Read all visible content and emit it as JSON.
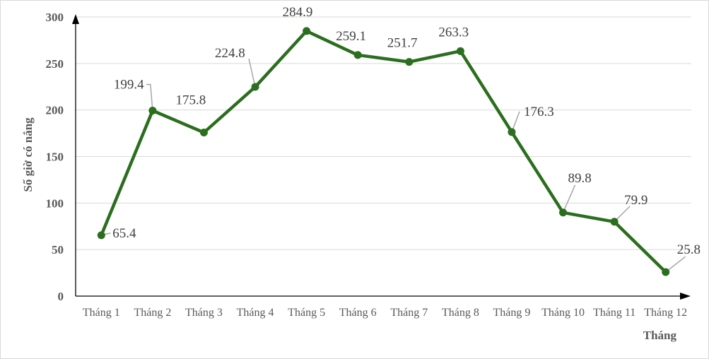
{
  "chart_data": {
    "type": "line",
    "categories": [
      "Tháng 1",
      "Tháng 2",
      "Tháng 3",
      "Tháng 4",
      "Tháng 5",
      "Tháng 6",
      "Tháng 7",
      "Tháng 8",
      "Tháng 9",
      "Tháng 10",
      "Tháng 11",
      "Tháng 12"
    ],
    "series": [
      {
        "values": [
          65.4,
          199.4,
          175.8,
          224.8,
          284.9,
          259.1,
          251.7,
          263.3,
          176.3,
          89.8,
          79.9,
          25.8
        ],
        "color": "#2a6e1e"
      }
    ],
    "data_labels": [
      "65.4",
      "199.4",
      "175.8",
      "224.8",
      "284.9",
      "259.1",
      "251.7",
      "263.3",
      "176.3",
      "89.8",
      "79.9",
      "25.8"
    ],
    "yticks": [
      "0",
      "50",
      "100",
      "150",
      "200",
      "250",
      "300"
    ],
    "ylim": [
      0,
      300
    ],
    "xlabel": "Tháng",
    "ylabel": "Số giờ có nắng",
    "title": "",
    "grid": "horizontal",
    "legend": "none"
  },
  "colors": {
    "line": "#2a6e1e",
    "grid": "#d9d9d9",
    "axis": "#000000",
    "leader": "#a6a6a6"
  }
}
